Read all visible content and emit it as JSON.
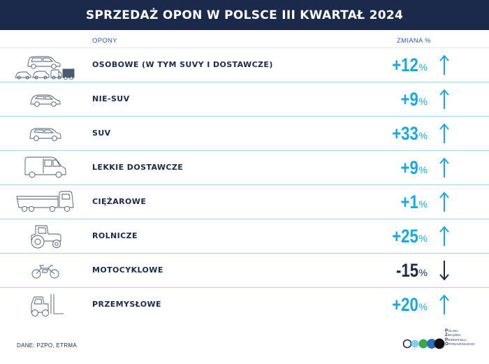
{
  "header": {
    "title": "SPRZEDAŻ OPON W POLSCE III KWARTAŁ 2024"
  },
  "columns": {
    "tires": "OPONY",
    "change": "ZMIANA %"
  },
  "rows": [
    {
      "icon": "car-suv-van-group-icon",
      "label": "OSOBOWE (W TYM SUVY I DOSTAWCZE)",
      "value": "+12",
      "unit": "%",
      "direction": "up"
    },
    {
      "icon": "hatchback-car-icon",
      "label": "NIE-SUV",
      "value": "+9",
      "unit": "%",
      "direction": "up"
    },
    {
      "icon": "suv-icon",
      "label": "SUV",
      "value": "+33",
      "unit": "%",
      "direction": "up"
    },
    {
      "icon": "delivery-van-icon",
      "label": "LEKKIE DOSTAWCZE",
      "value": "+9",
      "unit": "%",
      "direction": "up"
    },
    {
      "icon": "truck-icon",
      "label": "CIĘŻAROWE",
      "value": "+1",
      "unit": "%",
      "direction": "up"
    },
    {
      "icon": "tractor-icon",
      "label": "ROLNICZE",
      "value": "+25",
      "unit": "%",
      "direction": "up"
    },
    {
      "icon": "motorcycle-icon",
      "label": "MOTOCYKLOWE",
      "value": "-15",
      "unit": "%",
      "direction": "down"
    },
    {
      "icon": "forklift-icon",
      "label": "PRZEMYSŁOWE",
      "value": "+20",
      "unit": "%",
      "direction": "up"
    }
  ],
  "footer": {
    "source": "DANE: PZPO, ETRMA",
    "logo": {
      "lines": [
        {
          "initial": "P",
          "rest": "OLSKI"
        },
        {
          "initial": "Z",
          "rest": "WIĄZEK"
        },
        {
          "initial": "P",
          "rest": "RZEMYSŁU"
        },
        {
          "initial": "O",
          "rest": "PONIARSKIEGO"
        }
      ],
      "circle_colors": [
        "#1b2a4a",
        "#7fd1e8",
        "#3aa84a",
        "#2a6fb8",
        "#111111"
      ]
    }
  },
  "colors": {
    "header_bg": "#1b2a4a",
    "up": "#18a7e0",
    "down": "#1b2a4a",
    "divider": "#9fd6ec"
  }
}
